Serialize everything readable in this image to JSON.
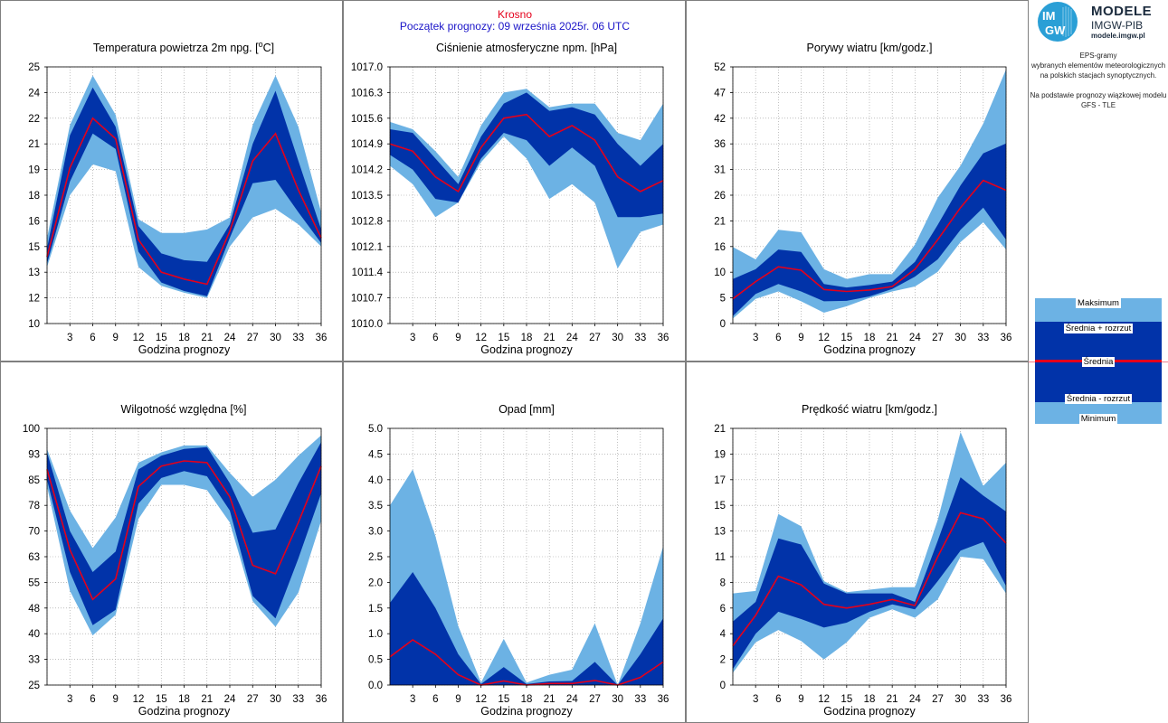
{
  "header": {
    "city": "Krosno",
    "forecast_start": "Początek prognozy: 09 września 2025r. 06 UTC"
  },
  "logo": {
    "badge_top": "IM",
    "badge_bottom": "GW",
    "title": "MODELE",
    "subtitle": "IMGW-PIB",
    "url": "modele.imgw.pl"
  },
  "info": {
    "line1": "EPS-gramy",
    "line2": "wybranych elementów meteorologicznych",
    "line3": "na polskich stacjach  synoptycznych.",
    "line4": "Na podstawie prognozy wiązkowej modelu",
    "line5": "GFS - TLE"
  },
  "legend": {
    "max": "Maksimum",
    "upper": "Średnia + rozrzut",
    "mean": "Średnia",
    "lower": "Średnia - rozrzut",
    "min": "Minimum"
  },
  "colors": {
    "outer_band": "#6cb2e4",
    "inner_band": "#0133a9",
    "mean_line": "#e4001b",
    "grid": "#9a9a9a",
    "panel_border": "#7f7f7f"
  },
  "chart_data": [
    {
      "type": "area",
      "title": "Temperatura powietrza 2m npg. [°C]",
      "title_main": "Temperatura powietrza 2m npg. [",
      "title_sup": "o",
      "title_end": "C]",
      "xlabel": "Godzina prognozy",
      "x": [
        0,
        3,
        6,
        9,
        12,
        15,
        18,
        21,
        24,
        27,
        30,
        33,
        36
      ],
      "x_ticks": [
        "3",
        "6",
        "9",
        "12",
        "15",
        "18",
        "21",
        "24",
        "27",
        "30",
        "33",
        "36"
      ],
      "xlim": [
        0,
        36
      ],
      "ylim": [
        10,
        25
      ],
      "y_ticks": [
        10,
        12,
        13,
        15,
        16,
        18,
        19,
        21,
        22,
        24,
        25
      ],
      "series": [
        {
          "name": "Maksimum",
          "values": [
            15.0,
            21.6,
            24.5,
            22.2,
            16.1,
            15.3,
            15.3,
            15.5,
            16.2,
            21.6,
            24.5,
            21.5,
            16.5
          ]
        },
        {
          "name": "Średnia + rozrzut",
          "values": [
            14.4,
            21.0,
            23.8,
            21.5,
            15.7,
            14.1,
            13.7,
            13.6,
            15.8,
            20.5,
            23.6,
            19.5,
            15.5
          ]
        },
        {
          "name": "Średnia",
          "values": [
            13.9,
            19.1,
            22.0,
            20.8,
            14.9,
            13.0,
            12.6,
            12.3,
            15.4,
            19.5,
            21.1,
            17.8,
            15.0
          ]
        },
        {
          "name": "Średnia - rozrzut",
          "values": [
            13.5,
            18.3,
            21.1,
            20.2,
            14.2,
            12.4,
            11.9,
            11.6,
            15.0,
            18.2,
            18.4,
            16.5,
            14.7
          ]
        },
        {
          "name": "Minimum",
          "values": [
            13.3,
            17.5,
            19.3,
            18.9,
            13.3,
            12.2,
            11.8,
            11.5,
            14.5,
            16.2,
            16.7,
            15.8,
            14.5
          ]
        }
      ]
    },
    {
      "type": "area",
      "title": "Ciśnienie atmosferyczne npm. [hPa]",
      "xlabel": "Godzina prognozy",
      "x": [
        0,
        3,
        6,
        9,
        12,
        15,
        18,
        21,
        24,
        27,
        30,
        33,
        36
      ],
      "x_ticks": [
        "3",
        "6",
        "9",
        "12",
        "15",
        "18",
        "21",
        "24",
        "27",
        "30",
        "33",
        "36"
      ],
      "xlim": [
        0,
        36
      ],
      "ylim": [
        1010.0,
        1017.0
      ],
      "y_ticks": [
        "1010.0",
        "1010.7",
        "1011.4",
        "1012.1",
        "1012.8",
        "1013.5",
        "1014.2",
        "1014.9",
        "1015.6",
        "1016.3",
        "1017.0"
      ],
      "series": [
        {
          "name": "Maksimum",
          "values": [
            1015.5,
            1015.3,
            1014.7,
            1014.0,
            1015.4,
            1016.3,
            1016.4,
            1015.9,
            1016.0,
            1016.0,
            1015.2,
            1015.0,
            1016.0
          ]
        },
        {
          "name": "Średnia + rozrzut",
          "values": [
            1015.3,
            1015.2,
            1014.5,
            1013.8,
            1015.1,
            1016.0,
            1016.3,
            1015.8,
            1015.9,
            1015.7,
            1014.9,
            1014.3,
            1014.9
          ]
        },
        {
          "name": "Średnia",
          "values": [
            1014.9,
            1014.7,
            1014.0,
            1013.6,
            1014.8,
            1015.6,
            1015.7,
            1015.1,
            1015.4,
            1015.0,
            1014.0,
            1013.6,
            1013.9
          ]
        },
        {
          "name": "Średnia - rozrzut",
          "values": [
            1014.6,
            1014.2,
            1013.4,
            1013.3,
            1014.5,
            1015.2,
            1015.0,
            1014.3,
            1014.8,
            1014.3,
            1012.9,
            1012.9,
            1013.0
          ]
        },
        {
          "name": "Minimum",
          "values": [
            1014.3,
            1013.8,
            1012.9,
            1013.3,
            1014.4,
            1015.1,
            1014.5,
            1013.4,
            1013.8,
            1013.3,
            1011.5,
            1012.5,
            1012.7
          ]
        }
      ]
    },
    {
      "type": "area",
      "title": "Porywy wiatru [km/godz.]",
      "xlabel": "Godzina prognozy",
      "x": [
        0,
        3,
        6,
        9,
        12,
        15,
        18,
        21,
        24,
        27,
        30,
        33,
        36
      ],
      "x_ticks": [
        "3",
        "6",
        "9",
        "12",
        "15",
        "18",
        "21",
        "24",
        "27",
        "30",
        "33",
        "36"
      ],
      "xlim": [
        0,
        36
      ],
      "ylim": [
        0,
        52
      ],
      "y_ticks": [
        0,
        5,
        10,
        16,
        21,
        26,
        31,
        36,
        42,
        47,
        52
      ],
      "series": [
        {
          "name": "Maksimum",
          "values": [
            15.5,
            13.0,
            19.0,
            18.5,
            11.0,
            9.0,
            10.0,
            10.0,
            16.0,
            25.5,
            32.0,
            40.5,
            51.5
          ]
        },
        {
          "name": "Średnia + rozrzut",
          "values": [
            9.0,
            11.0,
            15.0,
            14.5,
            8.0,
            7.3,
            7.8,
            8.5,
            12.5,
            20.0,
            28.0,
            34.5,
            36.5
          ]
        },
        {
          "name": "Średnia",
          "values": [
            5.0,
            8.5,
            11.5,
            10.8,
            6.9,
            6.5,
            6.8,
            7.5,
            11.0,
            17.0,
            23.5,
            29.0,
            27.0
          ]
        },
        {
          "name": "Średnia - rozrzut",
          "values": [
            1.5,
            6.0,
            8.0,
            6.5,
            4.5,
            4.6,
            5.5,
            7.0,
            9.5,
            13.0,
            19.0,
            23.5,
            17.0
          ]
        },
        {
          "name": "Minimum",
          "values": [
            1.0,
            5.0,
            6.5,
            4.5,
            2.2,
            3.5,
            5.2,
            6.5,
            7.5,
            10.5,
            16.5,
            20.5,
            15.0
          ]
        }
      ]
    },
    {
      "type": "area",
      "title": "Wilgotność względna [%]",
      "xlabel": "Godzina prognozy",
      "x": [
        0,
        3,
        6,
        9,
        12,
        15,
        18,
        21,
        24,
        27,
        30,
        33,
        36
      ],
      "x_ticks": [
        "3",
        "6",
        "9",
        "12",
        "15",
        "18",
        "21",
        "24",
        "27",
        "30",
        "33",
        "36"
      ],
      "xlim": [
        0,
        36
      ],
      "ylim": [
        25,
        100
      ],
      "y_ticks": [
        25,
        33,
        40,
        48,
        55,
        63,
        70,
        78,
        85,
        93,
        100
      ],
      "series": [
        {
          "name": "Maksimum",
          "values": [
            94.0,
            76.0,
            65.0,
            74.0,
            90.0,
            93.0,
            95.0,
            95.0,
            87.0,
            80.0,
            85.0,
            92.0,
            98.0
          ]
        },
        {
          "name": "Średnia + rozrzut",
          "values": [
            93.0,
            70.0,
            58.0,
            64.0,
            88.0,
            92.0,
            94.0,
            94.5,
            84.0,
            69.5,
            70.5,
            84.0,
            96.0
          ]
        },
        {
          "name": "Średnia",
          "values": [
            88.0,
            64.5,
            50.0,
            56.0,
            83.0,
            89.0,
            90.5,
            90.0,
            80.0,
            60.0,
            57.5,
            72.5,
            89.0
          ]
        },
        {
          "name": "Średnia - rozrzut",
          "values": [
            85.0,
            58.0,
            42.5,
            47.0,
            78.0,
            85.5,
            87.5,
            86.0,
            76.0,
            51.0,
            44.5,
            62.0,
            81.0
          ]
        },
        {
          "name": "Minimum",
          "values": [
            83.0,
            52.5,
            39.5,
            45.5,
            73.5,
            83.5,
            83.5,
            82.0,
            72.5,
            49.5,
            42.0,
            52.0,
            73.0
          ]
        }
      ]
    },
    {
      "type": "area",
      "title": "Opad [mm]",
      "xlabel": "Godzina prognozy",
      "x": [
        0,
        3,
        6,
        9,
        12,
        15,
        18,
        21,
        24,
        27,
        30,
        33,
        36
      ],
      "x_ticks": [
        "3",
        "6",
        "9",
        "12",
        "15",
        "18",
        "21",
        "24",
        "27",
        "30",
        "33",
        "36"
      ],
      "xlim": [
        0,
        36
      ],
      "ylim": [
        0,
        5.0
      ],
      "y_ticks": [
        "0.0",
        "0.5",
        "1.0",
        "1.5",
        "2.0",
        "2.5",
        "3.0",
        "3.5",
        "4.0",
        "4.5",
        "5.0"
      ],
      "series": [
        {
          "name": "Maksimum",
          "values": [
            3.5,
            4.2,
            2.9,
            1.15,
            0.05,
            0.9,
            0.05,
            0.2,
            0.3,
            1.2,
            0.0,
            1.2,
            2.7
          ]
        },
        {
          "name": "Średnia + rozrzut",
          "values": [
            1.6,
            2.2,
            1.5,
            0.6,
            0.02,
            0.35,
            0.02,
            0.07,
            0.08,
            0.45,
            0.0,
            0.6,
            1.3
          ]
        },
        {
          "name": "Średnia",
          "values": [
            0.55,
            0.88,
            0.6,
            0.2,
            0.0,
            0.08,
            0.0,
            0.03,
            0.03,
            0.09,
            0.0,
            0.15,
            0.45
          ]
        },
        {
          "name": "Średnia - rozrzut",
          "values": [
            0.0,
            0.0,
            0.0,
            0.0,
            0.0,
            0.0,
            0.0,
            0.0,
            0.0,
            0.0,
            0.0,
            0.0,
            0.0
          ]
        },
        {
          "name": "Minimum",
          "values": [
            0.0,
            0.0,
            0.0,
            0.0,
            0.0,
            0.0,
            0.0,
            0.0,
            0.0,
            0.0,
            0.0,
            0.0,
            0.0
          ]
        }
      ]
    },
    {
      "type": "area",
      "title": "Prędkość wiatru [km/godz.]",
      "xlabel": "Godzina prognozy",
      "x": [
        0,
        3,
        6,
        9,
        12,
        15,
        18,
        21,
        24,
        27,
        30,
        33,
        36
      ],
      "x_ticks": [
        "3",
        "6",
        "9",
        "12",
        "15",
        "18",
        "21",
        "24",
        "27",
        "30",
        "33",
        "36"
      ],
      "xlim": [
        0,
        36
      ],
      "ylim": [
        0,
        21
      ],
      "y_ticks": [
        0,
        2,
        4,
        6,
        8,
        11,
        13,
        15,
        17,
        19,
        21
      ],
      "series": [
        {
          "name": "Maksimum",
          "values": [
            7.5,
            7.7,
            14.0,
            13.0,
            8.5,
            7.6,
            7.8,
            8.0,
            8.0,
            13.5,
            20.7,
            16.3,
            18.2
          ]
        },
        {
          "name": "Średnia + rozrzut",
          "values": [
            5.2,
            6.8,
            12.0,
            11.5,
            8.3,
            7.5,
            7.5,
            7.5,
            6.8,
            11.8,
            17.0,
            15.5,
            14.2
          ]
        },
        {
          "name": "Średnia",
          "values": [
            3.2,
            5.7,
            8.9,
            8.2,
            6.6,
            6.3,
            6.6,
            7.0,
            6.5,
            10.5,
            14.1,
            13.6,
            11.6
          ]
        },
        {
          "name": "Średnia - rozrzut",
          "values": [
            1.3,
            4.2,
            6.0,
            5.4,
            4.7,
            5.1,
            6.0,
            6.6,
            6.2,
            8.5,
            11.0,
            11.7,
            8.1
          ]
        },
        {
          "name": "Minimum",
          "values": [
            1.0,
            3.5,
            4.5,
            3.6,
            2.1,
            3.5,
            5.5,
            6.2,
            5.5,
            7.0,
            10.5,
            10.3,
            7.5
          ]
        }
      ]
    }
  ]
}
